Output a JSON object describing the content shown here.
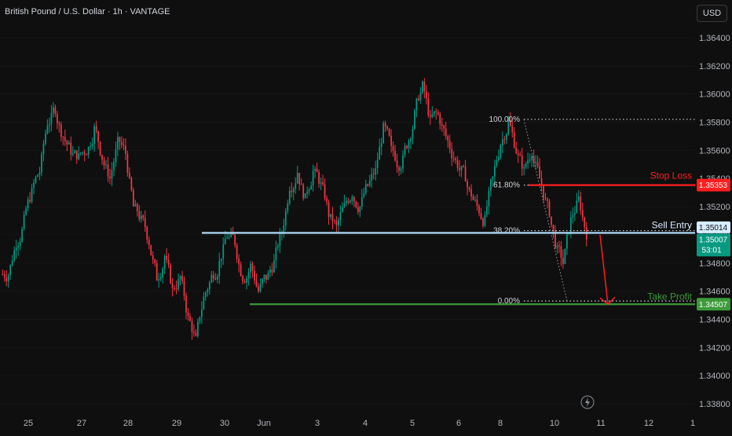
{
  "header": {
    "title": "British Pound / U.S. Dollar · 1h · VANTAGE",
    "currency_button": "USD"
  },
  "colors": {
    "background": "#0f0f0f",
    "up_candle": "#089981",
    "down_candle": "#f23645",
    "stop_loss": "#ff1e1e",
    "sell_entry": "#a9d2f0",
    "take_profit": "#3d9b3a",
    "current_price_tag": "#089981",
    "fib_dotted": "#d1d4dc"
  },
  "price_axis": {
    "ticks": [
      "1.36400",
      "1.36200",
      "1.36000",
      "1.35800",
      "1.35600",
      "1.35400",
      "1.35200",
      "1.35000",
      "1.34800",
      "1.34600",
      "1.34400",
      "1.34200",
      "1.34000",
      "1.33800"
    ]
  },
  "time_axis": {
    "ticks": [
      "25",
      "27",
      "28",
      "29",
      "30",
      "Jun",
      "3",
      "4",
      "5",
      "6",
      "8",
      "10",
      "11",
      "12",
      "1"
    ]
  },
  "annotations": {
    "stop_loss": {
      "label": "Stop Loss",
      "price": 1.35353,
      "tag": "1.35353"
    },
    "sell_entry": {
      "label": "Sell Entry",
      "price": 1.35014,
      "tag": "1.35014"
    },
    "take_profit": {
      "label": "Take Profit",
      "price": 1.34507,
      "tag": "1.34507"
    },
    "current_price": {
      "tag": "1.35007",
      "countdown": "53:01"
    },
    "fib_levels": [
      {
        "label": "100.00%",
        "price": 1.3582
      },
      {
        "label": "61.80%",
        "price": 1.35353
      },
      {
        "label": "38.20%",
        "price": 1.3503
      },
      {
        "label": "0.00%",
        "price": 1.3453
      }
    ]
  },
  "chart_data": {
    "type": "candlestick",
    "title": "British Pound / U.S. Dollar · 1h · VANTAGE",
    "y_range": [
      1.337,
      1.366
    ],
    "x_ticks": [
      "25",
      "27",
      "28",
      "29",
      "30",
      "Jun",
      "3",
      "4",
      "5",
      "6",
      "8",
      "10",
      "11",
      "12",
      "1"
    ],
    "series": [
      {
        "values": [
          1.3472,
          1.3495,
          1.351,
          1.353,
          1.3545,
          1.358,
          1.359,
          1.357,
          1.356,
          1.3555,
          1.356,
          1.3575,
          1.3555,
          1.354,
          1.3565,
          1.3558,
          1.352,
          1.351,
          1.3495,
          1.347,
          1.3485,
          1.346,
          1.347,
          1.344,
          1.3425,
          1.3455,
          1.347,
          1.348,
          1.35,
          1.3495,
          1.347,
          1.3478,
          1.346,
          1.347,
          1.348,
          1.3502,
          1.3535,
          1.3545,
          1.3525,
          1.3545,
          1.3535,
          1.3515,
          1.3505,
          1.352,
          1.353,
          1.352,
          1.3535,
          1.3545,
          1.3575,
          1.356,
          1.355,
          1.3565,
          1.3585,
          1.3605,
          1.358,
          1.3585,
          1.357,
          1.3555,
          1.3545,
          1.353,
          1.352,
          1.351,
          1.354,
          1.3565,
          1.358,
          1.356,
          1.3545,
          1.356,
          1.354,
          1.352,
          1.3495,
          1.348,
          1.351,
          1.3525,
          1.3501
        ]
      }
    ]
  }
}
